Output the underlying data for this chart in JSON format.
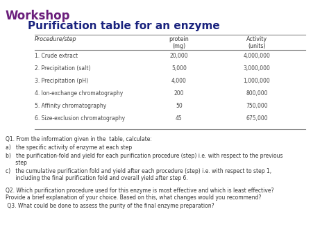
{
  "title1": "Workshop",
  "title2": "Purification table for an enzyme",
  "title1_color": "#6B1F7C",
  "title2_color": "#1A237E",
  "bg_color": "#FFFFFF",
  "table_header": [
    "Procedure/step",
    "protein\n(mg)",
    "Activity\n(units)"
  ],
  "table_rows": [
    [
      "1. Crude extract",
      "20,000",
      "4,000,000"
    ],
    [
      "2. Precipitation (salt)",
      "5,000",
      "3,000,000"
    ],
    [
      "3. Precipitation (pH)",
      "4,000",
      "1,000,000"
    ],
    [
      "4. Ion-exchange chromatography",
      "200",
      "800,000"
    ],
    [
      "5. Affinity chromatography",
      "50",
      "750,000"
    ],
    [
      "6. Size-exclusion chromatography",
      "45",
      "675,000"
    ]
  ],
  "q1": "Q1. From the information given in the  table, calculate:",
  "q1a": "a)   the specific activity of enzyme at each step",
  "q1b": "b)   the purification-fold and yield for each purification procedure (step) i.e. with respect to the previous\n      step",
  "q1c": "c)   the cumulative purification fold and yield after each procedure (step) i.e. with respect to step 1,\n      including the final purification fold and overall yield after step 6.",
  "q2": "Q2. Which purification procedure used for this enzyme is most effective and which is least effective?\nProvide a brief explanation of your choice. Based on this, what changes would you recommend?",
  "q3": " Q3. What could be done to assess the purity of the final enzyme preparation?"
}
